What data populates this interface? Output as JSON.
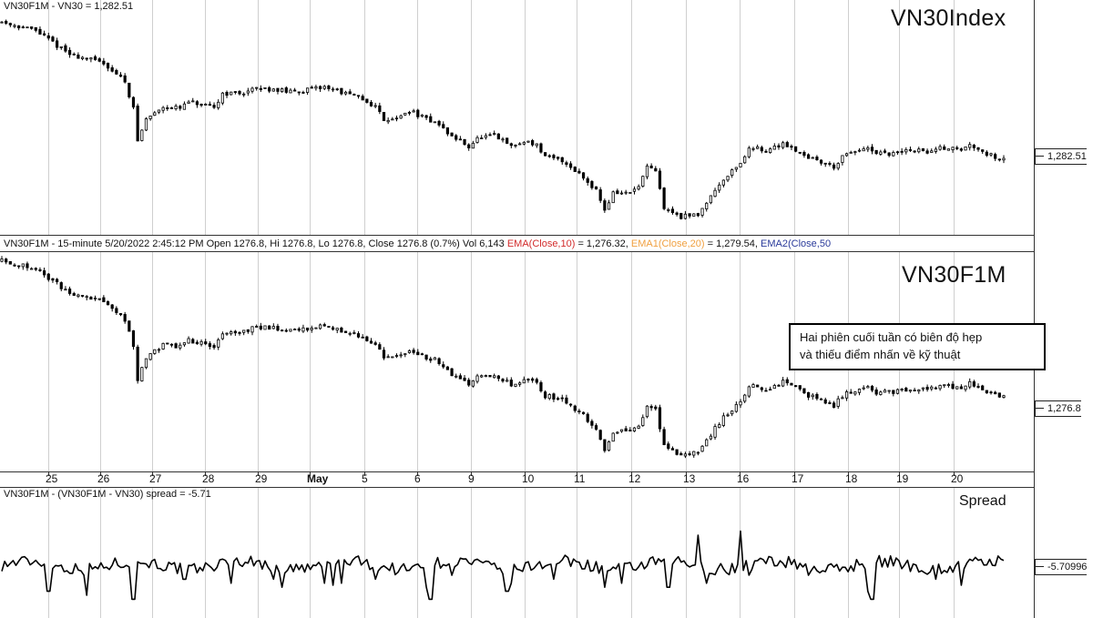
{
  "panels": {
    "top_header": "VN30F1M - VN30 = 1,282.51",
    "top_title": "VN30Index",
    "top_value_tag": "1,282.51",
    "middle_header_main": "VN30F1M - 15-minute 5/20/2022 2:45:12 PM Open 1276.8, Hi 1276.8, Lo 1276.8, Close 1276.8 (0.7%) Vol 6,143 ",
    "middle_header_ema": "EMA(Close,10)",
    "middle_header_ema_val": " = 1,276.32, ",
    "middle_header_ema1": "EMA1(Close,20)",
    "middle_header_ema1_val": " = 1,279.54, ",
    "middle_header_ema2": "EMA2(Close,50",
    "middle_title": "VN30F1M",
    "middle_value_tag": "1,276.8",
    "bottom_header": "VN30F1M - (VN30F1M - VN30) spread = -5.71",
    "bottom_title": "Spread",
    "bottom_value_tag": "-5.70996",
    "note_line1": "Hai phiên cuối tuần có biên độ hẹp",
    "note_line2": "và thiếu điểm nhấn về kỹ thuật"
  },
  "colors": {
    "ema": "#d22b2b",
    "ema1": "#f0a040",
    "ema2": "#2a3a9a",
    "candles": "#000000",
    "grid": "#cfcfcf"
  },
  "chart_data": [
    {
      "type": "candlestick",
      "title": "VN30Index",
      "series": "VN30",
      "x_ticks": [
        "25",
        "26",
        "27",
        "28",
        "29",
        "May",
        "5",
        "6",
        "9",
        "10",
        "11",
        "12",
        "13",
        "16",
        "17",
        "18",
        "19",
        "20"
      ],
      "last_value": 1282.51,
      "path_points": [
        [
          0,
          1380
        ],
        [
          4,
          1372
        ],
        [
          8,
          1350
        ],
        [
          12,
          1342
        ],
        [
          14.5,
          1325
        ],
        [
          15.5,
          1300
        ],
        [
          16,
          1270
        ],
        [
          17,
          1290
        ],
        [
          19,
          1302
        ],
        [
          21,
          1300
        ],
        [
          22,
          1306
        ],
        [
          25,
          1300
        ],
        [
          26,
          1314
        ],
        [
          28,
          1314
        ],
        [
          30,
          1318
        ],
        [
          32,
          1318
        ],
        [
          34,
          1315
        ],
        [
          37,
          1318
        ],
        [
          38,
          1320
        ],
        [
          39,
          1318
        ],
        [
          40,
          1315
        ],
        [
          42,
          1310
        ],
        [
          44,
          1302
        ],
        [
          45,
          1290
        ],
        [
          47,
          1292
        ],
        [
          48,
          1298
        ],
        [
          50,
          1290
        ],
        [
          51,
          1288
        ],
        [
          53,
          1274
        ],
        [
          54,
          1270
        ],
        [
          55,
          1265
        ],
        [
          56,
          1272
        ],
        [
          58,
          1275
        ],
        [
          60,
          1265
        ],
        [
          62,
          1270
        ],
        [
          63,
          1266
        ],
        [
          64,
          1255
        ],
        [
          66,
          1252
        ],
        [
          68,
          1240
        ],
        [
          70,
          1225
        ],
        [
          71,
          1206
        ],
        [
          72,
          1222
        ],
        [
          74,
          1222
        ],
        [
          75,
          1228
        ],
        [
          76,
          1245
        ],
        [
          77,
          1242
        ],
        [
          78,
          1208
        ],
        [
          80,
          1200
        ],
        [
          82,
          1202
        ],
        [
          83,
          1214
        ],
        [
          85,
          1235
        ],
        [
          87,
          1250
        ],
        [
          88,
          1262
        ],
        [
          89,
          1265
        ],
        [
          90,
          1260
        ],
        [
          92,
          1268
        ],
        [
          93,
          1264
        ],
        [
          95,
          1255
        ],
        [
          96,
          1252
        ],
        [
          98,
          1246
        ],
        [
          99,
          1255
        ],
        [
          101,
          1262
        ],
        [
          102,
          1262
        ],
        [
          103,
          1258
        ],
        [
          105,
          1258
        ],
        [
          107,
          1262
        ],
        [
          109,
          1260
        ],
        [
          111,
          1264
        ],
        [
          113,
          1262
        ],
        [
          114,
          1266
        ],
        [
          115,
          1264
        ],
        [
          116,
          1258
        ],
        [
          117.5,
          1254
        ],
        [
          118,
          1255
        ]
      ]
    },
    {
      "type": "candlestick",
      "title": "VN30F1M",
      "series": "VN30F1M 15-minute",
      "x_ticks": [
        "25",
        "26",
        "27",
        "28",
        "29",
        "May",
        "5",
        "6",
        "9",
        "10",
        "11",
        "12",
        "13",
        "16",
        "17",
        "18",
        "19",
        "20"
      ],
      "last_value": 1276.8,
      "path_points": [
        [
          0,
          1380
        ],
        [
          4,
          1372
        ],
        [
          8,
          1350
        ],
        [
          12,
          1342
        ],
        [
          14.5,
          1325
        ],
        [
          15.5,
          1300
        ],
        [
          16,
          1270
        ],
        [
          17,
          1290
        ],
        [
          19,
          1302
        ],
        [
          21,
          1300
        ],
        [
          22,
          1306
        ],
        [
          25,
          1300
        ],
        [
          26,
          1314
        ],
        [
          28,
          1314
        ],
        [
          30,
          1318
        ],
        [
          32,
          1318
        ],
        [
          34,
          1315
        ],
        [
          37,
          1318
        ],
        [
          38,
          1320
        ],
        [
          39,
          1318
        ],
        [
          40,
          1315
        ],
        [
          42,
          1310
        ],
        [
          44,
          1302
        ],
        [
          45,
          1290
        ],
        [
          47,
          1292
        ],
        [
          48,
          1298
        ],
        [
          50,
          1290
        ],
        [
          51,
          1288
        ],
        [
          53,
          1274
        ],
        [
          54,
          1270
        ],
        [
          55,
          1265
        ],
        [
          56,
          1272
        ],
        [
          58,
          1275
        ],
        [
          60,
          1265
        ],
        [
          62,
          1270
        ],
        [
          63,
          1266
        ],
        [
          64,
          1255
        ],
        [
          66,
          1252
        ],
        [
          68,
          1240
        ],
        [
          70,
          1225
        ],
        [
          71,
          1206
        ],
        [
          72,
          1222
        ],
        [
          74,
          1222
        ],
        [
          75,
          1228
        ],
        [
          76,
          1245
        ],
        [
          77,
          1242
        ],
        [
          78,
          1208
        ],
        [
          80,
          1200
        ],
        [
          82,
          1202
        ],
        [
          83,
          1214
        ],
        [
          85,
          1235
        ],
        [
          87,
          1250
        ],
        [
          88,
          1262
        ],
        [
          89,
          1265
        ],
        [
          90,
          1260
        ],
        [
          92,
          1268
        ],
        [
          93,
          1264
        ],
        [
          95,
          1255
        ],
        [
          96,
          1252
        ],
        [
          98,
          1246
        ],
        [
          99,
          1255
        ],
        [
          101,
          1262
        ],
        [
          102,
          1262
        ],
        [
          103,
          1258
        ],
        [
          105,
          1258
        ],
        [
          107,
          1262
        ],
        [
          109,
          1260
        ],
        [
          111,
          1264
        ],
        [
          113,
          1262
        ],
        [
          114,
          1266
        ],
        [
          115,
          1264
        ],
        [
          116,
          1258
        ],
        [
          117.5,
          1254
        ],
        [
          118,
          1255
        ]
      ]
    },
    {
      "type": "line",
      "title": "Spread",
      "series": "(VN30F1M - VN30) spread",
      "last_value": -5.71,
      "baseline": -5,
      "spikes": [
        [
          5.5,
          -18
        ],
        [
          10,
          -20
        ],
        [
          15.5,
          -22
        ],
        [
          21.5,
          -12
        ],
        [
          27,
          -14
        ],
        [
          32,
          -12
        ],
        [
          33,
          -16
        ],
        [
          38,
          -14
        ],
        [
          39,
          -15
        ],
        [
          40,
          -14
        ],
        [
          44,
          -12
        ],
        [
          50,
          -16
        ],
        [
          50.5,
          -22
        ],
        [
          53,
          -10
        ],
        [
          59.5,
          -18
        ],
        [
          60,
          -14
        ],
        [
          65,
          -12
        ],
        [
          71,
          -16
        ],
        [
          73,
          -14
        ],
        [
          78.5,
          -16
        ],
        [
          82,
          10
        ],
        [
          83,
          -14
        ],
        [
          87,
          12
        ],
        [
          88,
          -10
        ],
        [
          95,
          -10
        ],
        [
          102,
          -18
        ],
        [
          102.5,
          -22
        ],
        [
          110,
          -12
        ],
        [
          113,
          -15
        ]
      ]
    }
  ]
}
